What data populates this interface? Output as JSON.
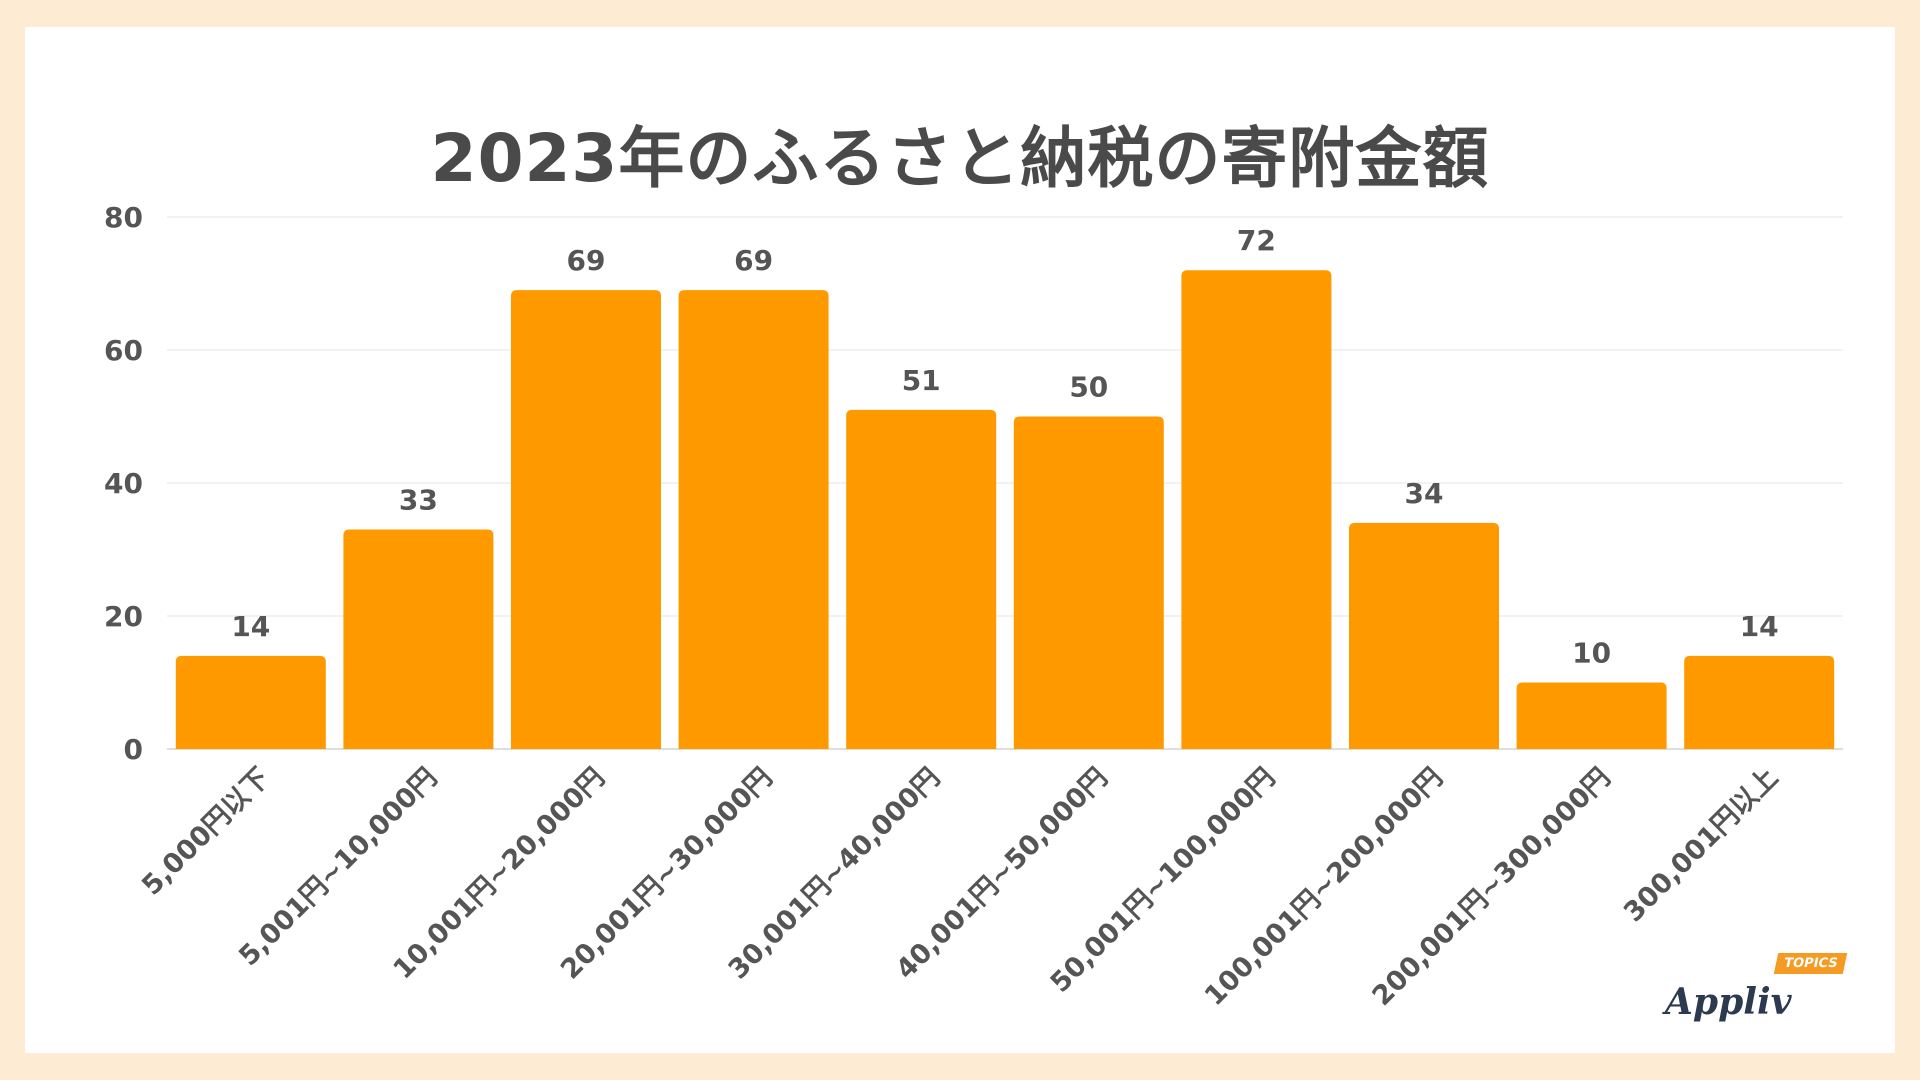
{
  "chart_data": {
    "type": "bar",
    "title": "2023年のふるさと納税の寄附金額",
    "categories": [
      "5,000円以下",
      "5,001円~10,000円",
      "10,001円~20,000円",
      "20,001円~30,000円",
      "30,001円~40,000円",
      "40,001円~50,000円",
      "50,001円~100,000円",
      "100,001円~200,000円",
      "200,001円~300,000円",
      "300,001円以上"
    ],
    "values": [
      14,
      33,
      69,
      69,
      51,
      50,
      72,
      34,
      10,
      14
    ],
    "ylim": [
      0,
      80
    ],
    "yticks": [
      0,
      20,
      40,
      60,
      80
    ],
    "grid": true,
    "data_labels": true,
    "bar_color": "#ff9900"
  },
  "brand": {
    "logo_text": "Appliv",
    "logo_badge": "TOPICS"
  }
}
